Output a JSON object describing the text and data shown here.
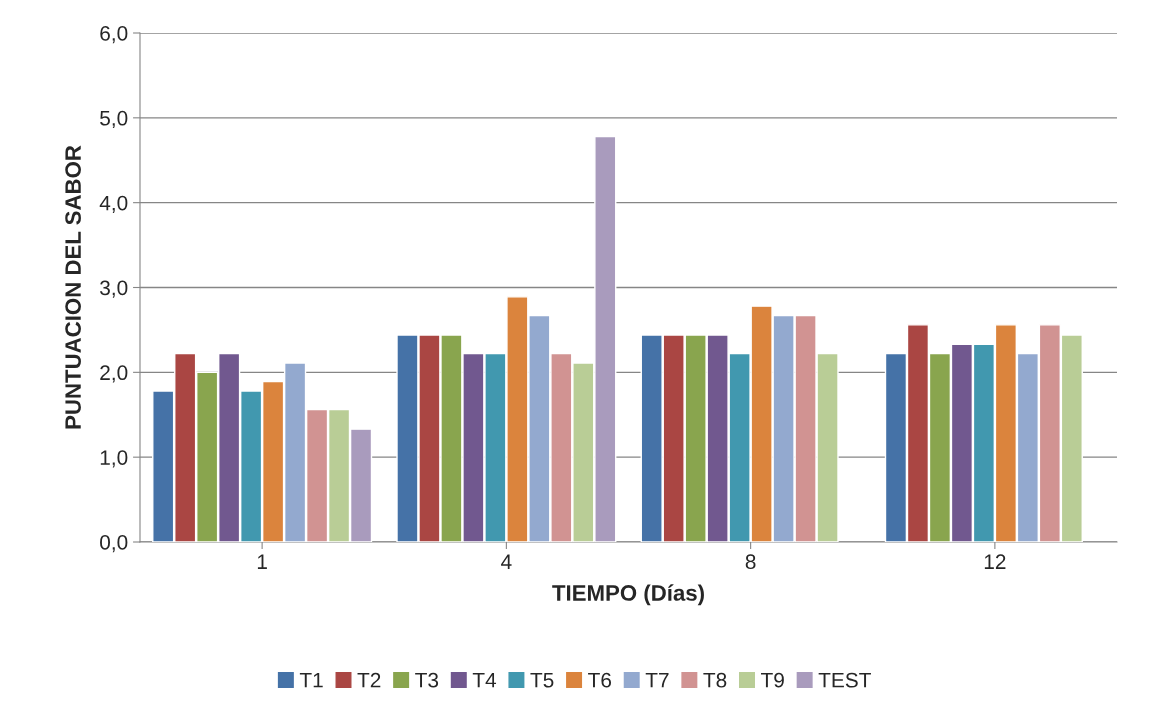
{
  "chart_data": {
    "type": "bar",
    "xlabel": "TIEMPO (Días)",
    "ylabel": "PUNTUACION DEL SABOR",
    "categories": [
      "1",
      "4",
      "8",
      "12"
    ],
    "series": [
      {
        "name": "T1",
        "color": "#4572a7",
        "values": [
          1.78,
          2.44,
          2.44,
          2.22
        ]
      },
      {
        "name": "T2",
        "color": "#aa4643",
        "values": [
          2.22,
          2.44,
          2.44,
          2.56
        ]
      },
      {
        "name": "T3",
        "color": "#89a54e",
        "values": [
          2.0,
          2.44,
          2.44,
          2.22
        ]
      },
      {
        "name": "T4",
        "color": "#71588f",
        "values": [
          2.22,
          2.22,
          2.44,
          2.33
        ]
      },
      {
        "name": "T5",
        "color": "#4198af",
        "values": [
          1.78,
          2.22,
          2.22,
          2.33
        ]
      },
      {
        "name": "T6",
        "color": "#db843d",
        "values": [
          1.89,
          2.89,
          2.78,
          2.56
        ]
      },
      {
        "name": "T7",
        "color": "#93a9cf",
        "values": [
          2.11,
          2.67,
          2.67,
          2.22
        ]
      },
      {
        "name": "T8",
        "color": "#d19392",
        "values": [
          1.56,
          2.22,
          2.67,
          2.56
        ]
      },
      {
        "name": "T9",
        "color": "#b9cd96",
        "values": [
          1.56,
          2.11,
          2.22,
          2.44
        ]
      },
      {
        "name": "TEST",
        "color": "#a99bbd",
        "values": [
          1.33,
          4.78,
          null,
          null
        ]
      }
    ],
    "ylim": [
      0,
      6
    ],
    "yticks": [
      {
        "value": 0,
        "label": "0,0"
      },
      {
        "value": 1,
        "label": "1,0"
      },
      {
        "value": 2,
        "label": "2,0"
      },
      {
        "value": 3,
        "label": "3,0"
      },
      {
        "value": 4,
        "label": "4,0"
      },
      {
        "value": 5,
        "label": "5,0"
      },
      {
        "value": 6,
        "label": "6,0"
      }
    ],
    "grid": "y",
    "legend": "bottom"
  }
}
